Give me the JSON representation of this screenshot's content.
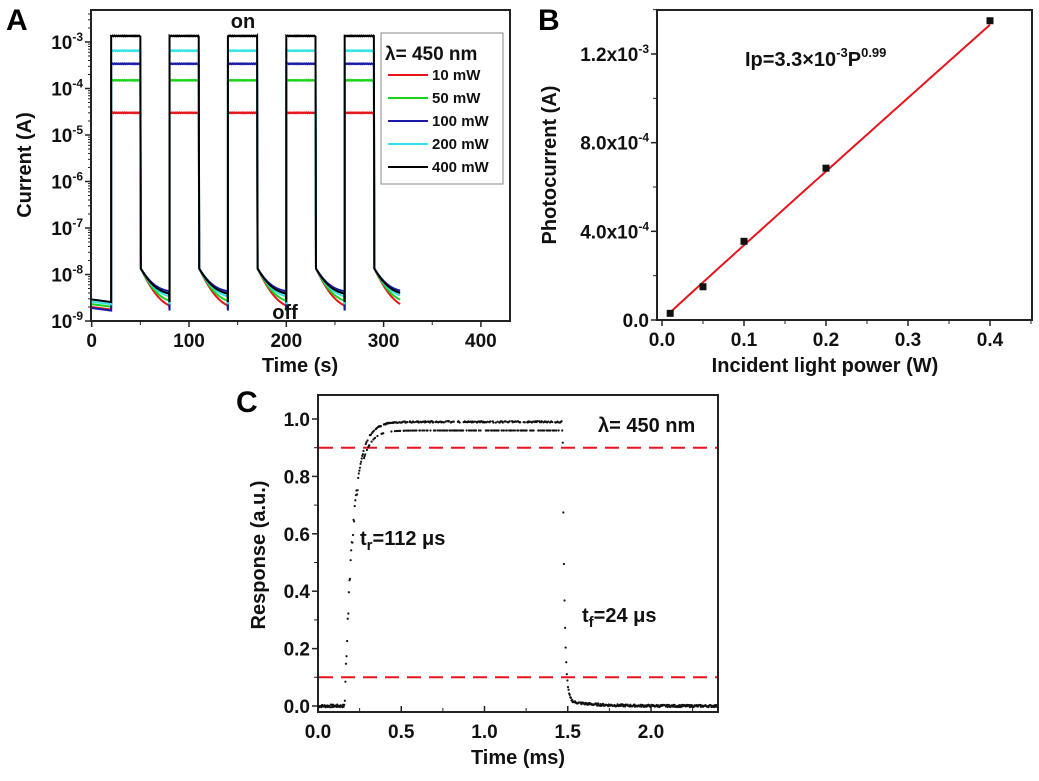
{
  "chart_data": [
    {
      "panel": "A",
      "type": "line",
      "xlabel": "Time (s)",
      "ylabel": "Current (A)",
      "xscale": "linear",
      "yscale": "log",
      "xlim": [
        0,
        430
      ],
      "ylim": [
        1e-09,
        0.005
      ],
      "xticks": [
        0,
        100,
        200,
        300,
        400
      ],
      "xtick_labels": [
        "0",
        "100",
        "200",
        "300",
        "400"
      ],
      "yticks": [
        1e-09,
        1e-08,
        1e-07,
        1e-06,
        1e-05,
        0.0001,
        0.001
      ],
      "ytick_labels": [
        "10^-9",
        "10^-8",
        "10^-7",
        "10^-6",
        "10^-5",
        "10^-4",
        "10^-3"
      ],
      "annotations": {
        "on": "on",
        "off": "off"
      },
      "legend": {
        "title": "λ= 450 nm",
        "placement": "top-right"
      },
      "on_intervals_s": [
        [
          20,
          50
        ],
        [
          80,
          110
        ],
        [
          140,
          170
        ],
        [
          200,
          230
        ],
        [
          260,
          290
        ]
      ],
      "t_end_s": 317,
      "series": [
        {
          "name": "10 mW",
          "color": "#e8141c",
          "on_current": 3e-05,
          "off_floor": 1.7e-09,
          "initial": 2e-09
        },
        {
          "name": "50 mW",
          "color": "#19d419",
          "on_current": 0.00015,
          "off_floor": 2.3e-09,
          "initial": 2.3e-09
        },
        {
          "name": "100 mW",
          "color": "#1a1aa8",
          "on_current": 0.00034,
          "off_floor": 4e-09,
          "initial": 1.9e-09
        },
        {
          "name": "200 mW",
          "color": "#2fe3e8",
          "on_current": 0.00065,
          "off_floor": 3e-09,
          "initial": 2.6e-09
        },
        {
          "name": "400 mW",
          "color": "#000000",
          "on_current": 0.00135,
          "off_floor": 3.5e-09,
          "initial": 2.9e-09
        }
      ]
    },
    {
      "panel": "B",
      "type": "scatter",
      "xlabel": "Incident light power (W)",
      "ylabel": "Photocurrent (A)",
      "xlim": [
        -0.006,
        0.451
      ],
      "ylim": [
        0,
        0.0014
      ],
      "xticks": [
        0.0,
        0.1,
        0.2,
        0.3,
        0.4
      ],
      "xtick_labels": [
        "0.0",
        "0.1",
        "0.2",
        "0.3",
        "0.4"
      ],
      "yticks": [
        0,
        0.0004,
        0.0008,
        0.0012
      ],
      "ytick_labels": [
        "0.0",
        "4.0x10^-4",
        "8.0x10^-4",
        "1.2x10^-3"
      ],
      "x": [
        0.01,
        0.05,
        0.1,
        0.2,
        0.4
      ],
      "y": [
        3e-05,
        0.00015,
        0.000355,
        0.000685,
        0.00135
      ],
      "fit": {
        "coef": 0.0033,
        "exponent": 0.99,
        "color": "#e8141c",
        "label_main": "Ip=3.3×10",
        "label_exp1": "-3",
        "label_mid": "P",
        "label_exp2": "0.99"
      }
    },
    {
      "panel": "C",
      "type": "scatter",
      "xlabel": "Time (ms)",
      "ylabel": "Response (a.u.)",
      "xlim": [
        0,
        2.4
      ],
      "ylim": [
        -0.02,
        1.084
      ],
      "xticks": [
        0.0,
        0.5,
        1.0,
        1.5,
        2.0
      ],
      "xtick_labels": [
        "0.0",
        "0.5",
        "1.0",
        "1.5",
        "2.0"
      ],
      "yticks": [
        0.0,
        0.2,
        0.4,
        0.6,
        0.8,
        1.0
      ],
      "ytick_labels": [
        "0.0",
        "0.2",
        "0.4",
        "0.6",
        "0.8",
        "1.0"
      ],
      "light_on_ms": 0.16,
      "light_off_ms": 1.47,
      "threshold_lines": [
        0.9,
        0.1
      ],
      "threshold_color": "#e8141c",
      "wavelength_label": "λ= 450 nm",
      "rise": {
        "t": "t",
        "sub": "r",
        "rest": "=112 μs",
        "value_us": 112
      },
      "fall": {
        "t": "t",
        "sub": "f",
        "rest": "=24 μs",
        "value_us": 24
      }
    }
  ],
  "panels": {
    "a": "A",
    "b": "B",
    "c": "C"
  }
}
